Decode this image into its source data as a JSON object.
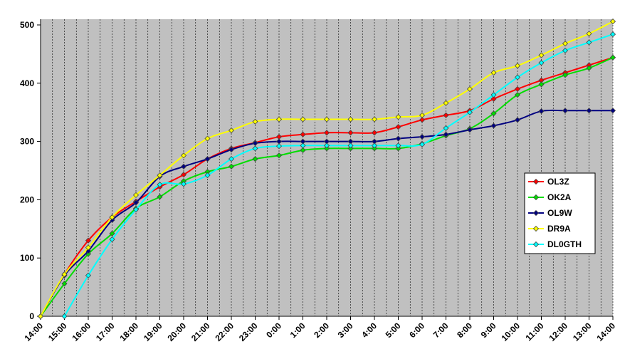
{
  "chart_data": {
    "type": "line",
    "categories": [
      "14:00",
      "15:00",
      "16:00",
      "17:00",
      "18:00",
      "19:00",
      "20:00",
      "21:00",
      "22:00",
      "23:00",
      "0:00",
      "1:00",
      "2:00",
      "3:00",
      "4:00",
      "5:00",
      "6:00",
      "7:00",
      "8:00",
      "9:00",
      "10:00",
      "11:00",
      "12:00",
      "13:00",
      "14:00"
    ],
    "ylim": [
      0,
      500
    ],
    "yticks": [
      0,
      100,
      200,
      300,
      400,
      500
    ],
    "legend": "right",
    "series": [
      {
        "name": "OL3Z",
        "color": "#ff0000",
        "values": [
          0,
          72,
          130,
          170,
          197,
          222,
          243,
          270,
          288,
          298,
          308,
          312,
          315,
          315,
          315,
          325,
          337,
          345,
          353,
          373,
          390,
          405,
          418,
          431,
          444
        ]
      },
      {
        "name": "OK2A",
        "color": "#00dd00",
        "values": [
          0,
          56,
          107,
          142,
          185,
          205,
          232,
          248,
          257,
          270,
          276,
          285,
          288,
          288,
          288,
          288,
          296,
          310,
          322,
          348,
          380,
          398,
          414,
          426,
          444
        ]
      },
      {
        "name": "OL9W",
        "color": "#000080",
        "values": [
          0,
          70,
          112,
          165,
          195,
          240,
          257,
          270,
          286,
          297,
          300,
          300,
          300,
          300,
          300,
          305,
          308,
          312,
          320,
          327,
          337,
          352,
          353,
          353,
          353
        ]
      },
      {
        "name": "DR9A",
        "color": "#ffff00",
        "values": [
          0,
          72,
          118,
          170,
          208,
          242,
          276,
          305,
          319,
          334,
          338,
          338,
          338,
          338,
          338,
          342,
          345,
          366,
          390,
          418,
          430,
          448,
          468,
          485,
          506
        ]
      },
      {
        "name": "DL0GTH",
        "color": "#00ffff",
        "values": [
          null,
          0,
          70,
          132,
          183,
          226,
          227,
          242,
          270,
          288,
          292,
          293,
          293,
          293,
          293,
          293,
          295,
          323,
          350,
          380,
          410,
          435,
          456,
          470,
          484
        ]
      }
    ]
  }
}
